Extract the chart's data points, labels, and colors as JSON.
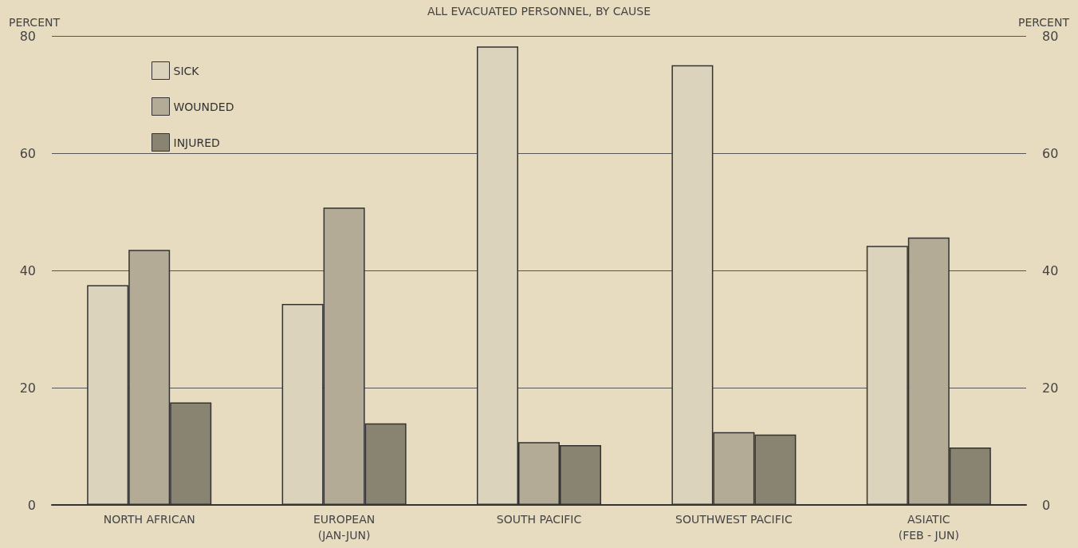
{
  "chart_data": {
    "type": "bar",
    "title": "ALL EVACUATED PERSONNEL, BY CAUSE",
    "categories": [
      "NORTH AFRICAN",
      "EUROPEAN\n(JAN-JUN)",
      "SOUTH PACIFIC",
      "SOUTHWEST PACIFIC",
      "ASIATIC\n(FEB - JUN)"
    ],
    "series": [
      {
        "name": "SICK",
        "color": "#dcd3bd",
        "values": [
          37.5,
          34.3,
          78.2,
          75,
          44.2
        ]
      },
      {
        "name": "WOUNDED",
        "color": "#b4ab97",
        "values": [
          43.5,
          50.7,
          10.7,
          12.4,
          45.6
        ]
      },
      {
        "name": "INJURED",
        "color": "#898372",
        "values": [
          17.5,
          13.9,
          10.2,
          12,
          9.8
        ]
      }
    ],
    "ylabel": "PERCENT",
    "y2label": "PERCENT",
    "ylim": [
      0,
      80
    ],
    "yticks": [
      0,
      20,
      40,
      60,
      80
    ],
    "y2lim": [
      0,
      80
    ],
    "y2ticks": [
      0,
      20,
      40,
      60,
      80
    ],
    "grid": "y",
    "legend": "top left"
  }
}
